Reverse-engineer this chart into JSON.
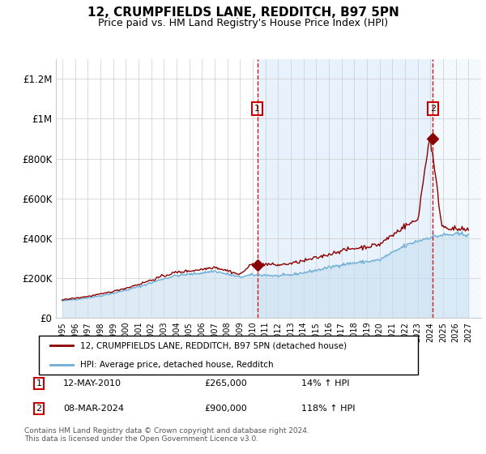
{
  "title": "12, CRUMPFIELDS LANE, REDDITCH, B97 5PN",
  "subtitle": "Price paid vs. HM Land Registry's House Price Index (HPI)",
  "title_fontsize": 11,
  "subtitle_fontsize": 9,
  "ylim": [
    0,
    1300000
  ],
  "yticks": [
    0,
    200000,
    400000,
    600000,
    800000,
    1000000,
    1200000
  ],
  "ytick_labels": [
    "£0",
    "£200K",
    "£400K",
    "£600K",
    "£800K",
    "£1M",
    "£1.2M"
  ],
  "hpi_color": "#6baed6",
  "price_color": "#8b0000",
  "hpi_fill_color": "#ddeeff",
  "sale1_x": 2010.36,
  "sale1_y": 265000,
  "sale2_x": 2024.19,
  "sale2_y": 900000,
  "legend_line1": "12, CRUMPFIELDS LANE, REDDITCH, B97 5PN (detached house)",
  "legend_line2": "HPI: Average price, detached house, Redditch",
  "table_row1": [
    "1",
    "12-MAY-2010",
    "£265,000",
    "14% ↑ HPI"
  ],
  "table_row2": [
    "2",
    "08-MAR-2024",
    "£900,000",
    "118% ↑ HPI"
  ],
  "footer": "Contains HM Land Registry data © Crown copyright and database right 2024.\nThis data is licensed under the Open Government Licence v3.0.",
  "xmin": 1994.5,
  "xmax": 2027.5
}
